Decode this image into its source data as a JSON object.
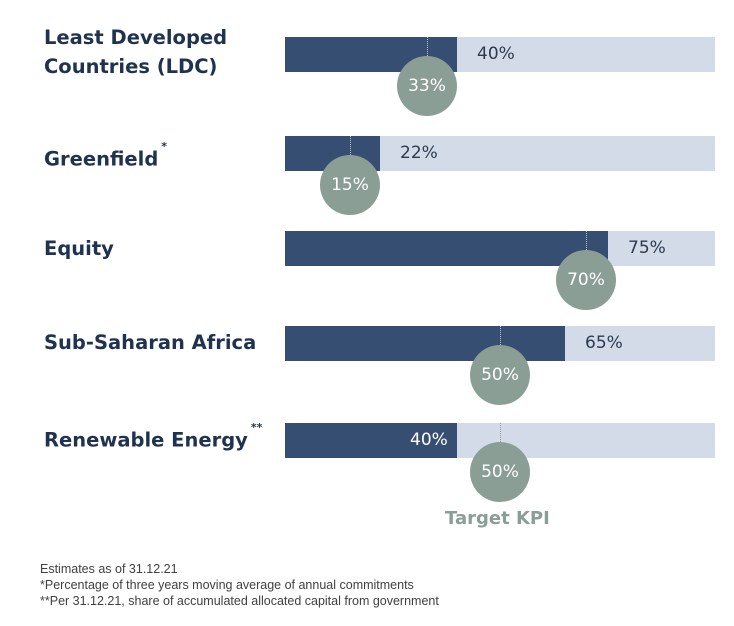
{
  "chart_data": {
    "type": "bar",
    "orientation": "horizontal",
    "scale": [
      0,
      100
    ],
    "categories": [
      "Least Developed Countries (LDC)",
      "Greenfield",
      "Equity",
      "Sub-Saharan Africa",
      "Renewable Energy"
    ],
    "series": [
      {
        "values": [
          40,
          22,
          75,
          65,
          40
        ]
      },
      {
        "name": "Target KPI",
        "values": [
          33,
          15,
          70,
          50,
          50
        ]
      }
    ],
    "rows": [
      {
        "label_line1": "Least Developed",
        "label_line2": "Countries (LDC)",
        "marker": "",
        "actual": 40,
        "actual_text": "40%",
        "target": 33,
        "target_text": "33%"
      },
      {
        "label_line1": "Greenfield",
        "label_line2": "",
        "marker": "*",
        "actual": 22,
        "actual_text": "22%",
        "target": 15,
        "target_text": "15%"
      },
      {
        "label_line1": "Equity",
        "label_line2": "",
        "marker": "",
        "actual": 75,
        "actual_text": "75%",
        "target": 70,
        "target_text": "70%"
      },
      {
        "label_line1": "Sub-Saharan Africa",
        "label_line2": "",
        "marker": "",
        "actual": 65,
        "actual_text": "65%",
        "target": 50,
        "target_text": "50%"
      },
      {
        "label_line1": "Renewable Energy",
        "label_line2": "",
        "marker": "**",
        "actual": 40,
        "actual_text": "40%",
        "target": 50,
        "target_text": "50%"
      }
    ],
    "target_label": "Target KPI",
    "colors": {
      "actual": "#364e71",
      "track": "#d3dbe8",
      "target": "#8a9e96",
      "label": "#1f3350"
    },
    "grid": false
  },
  "notes": {
    "line1": "Estimates as of 31.12.21",
    "line2": "*Percentage of three years moving average of annual commitments",
    "line3": "**Per 31.12.21, share of accumulated allocated capital from government"
  }
}
